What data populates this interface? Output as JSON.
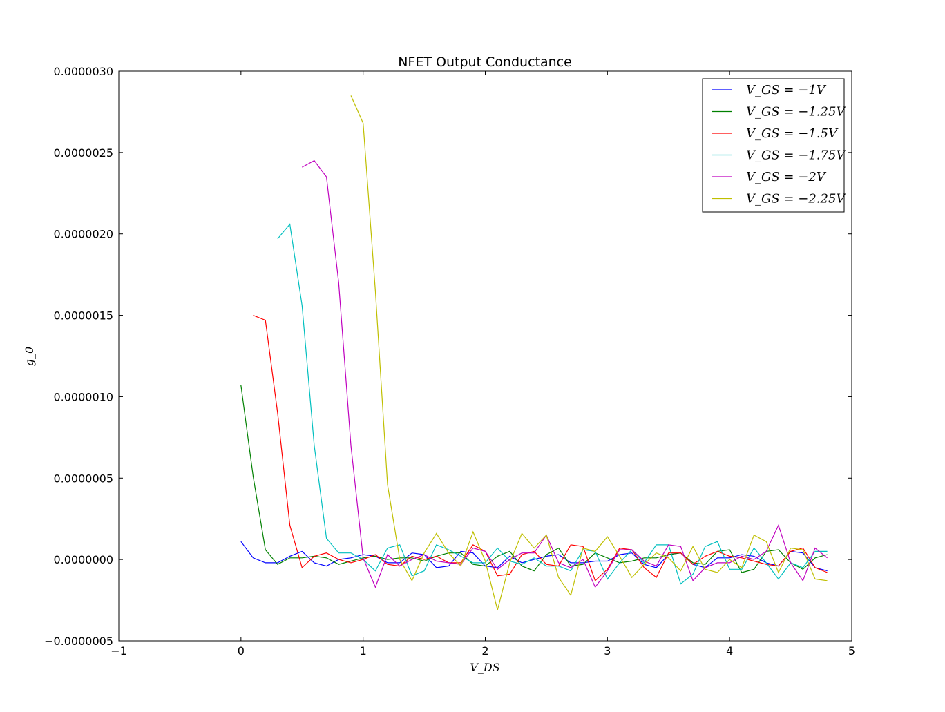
{
  "chart_data": {
    "type": "line",
    "title": "NFET Output Conductance",
    "xlabel": "V_DS",
    "ylabel": "g_0",
    "xlim": [
      -1,
      5
    ],
    "ylim": [
      -5e-07,
      3e-06
    ],
    "xticks": [
      -1,
      0,
      1,
      2,
      3,
      4,
      5
    ],
    "xtick_labels": [
      "−1",
      "0",
      "1",
      "2",
      "3",
      "4",
      "5"
    ],
    "yticks": [
      -5e-07,
      0,
      5e-07,
      1e-06,
      1.5e-06,
      2e-06,
      2.5e-06,
      3e-06
    ],
    "ytick_labels": [
      "−0.0000005",
      "0.0000000",
      "0.0000005",
      "0.0000010",
      "0.0000015",
      "0.0000020",
      "0.0000025",
      "0.0000030"
    ],
    "grid": false,
    "legend_position": "top-right",
    "series": [
      {
        "name": "V_GS = −1V",
        "color": "#0000ff",
        "x": [
          0,
          0.1,
          0.2,
          0.3,
          0.4,
          0.5,
          0.6,
          0.7,
          0.8,
          0.9,
          1.0,
          1.1,
          1.2,
          1.3,
          1.4,
          1.5,
          1.6,
          1.7,
          1.8,
          1.9,
          2.0,
          2.1,
          2.2,
          2.3,
          2.4,
          2.5,
          2.6,
          2.7,
          2.8,
          2.9,
          3.0,
          3.1,
          3.2,
          3.3,
          3.4,
          3.5,
          3.6,
          3.7,
          3.8,
          3.9,
          4.0,
          4.1,
          4.2,
          4.3,
          4.4,
          4.5,
          4.6,
          4.7,
          4.8
        ],
        "y": [
          1.1e-07,
          1e-08,
          -2e-08,
          -2e-08,
          2e-08,
          5e-08,
          -2e-08,
          -4e-08,
          0,
          1e-08,
          3e-08,
          2e-08,
          -2e-08,
          -2e-08,
          4e-08,
          3e-08,
          -5e-08,
          -4e-08,
          5e-08,
          4e-08,
          -4e-08,
          -5e-08,
          2e-08,
          -2e-08,
          0,
          2e-08,
          3e-08,
          -2e-08,
          -2e-08,
          -1e-08,
          -1e-08,
          3e-08,
          4e-08,
          -3e-08,
          -5e-08,
          3e-08,
          4e-08,
          -3e-08,
          -5e-08,
          1e-08,
          1e-08,
          3e-08,
          2e-08,
          -2e-08,
          -4e-08,
          5e-08,
          4e-08,
          -5e-08,
          -7e-08
        ]
      },
      {
        "name": "V_GS = −1.25V",
        "color": "#008000",
        "x": [
          0,
          0.1,
          0.2,
          0.3,
          0.4,
          0.5,
          0.6,
          0.7,
          0.8,
          0.9,
          1.0,
          1.1,
          1.2,
          1.3,
          1.4,
          1.5,
          1.6,
          1.7,
          1.8,
          1.9,
          2.0,
          2.1,
          2.2,
          2.3,
          2.4,
          2.5,
          2.6,
          2.7,
          2.8,
          2.9,
          3.0,
          3.1,
          3.2,
          3.3,
          3.4,
          3.5,
          3.6,
          3.7,
          3.8,
          3.9,
          4.0,
          4.1,
          4.2,
          4.3,
          4.4,
          4.5,
          4.6,
          4.7,
          4.8
        ],
        "y": [
          1.07e-06,
          5.1e-07,
          6e-08,
          -3e-08,
          1e-08,
          1e-08,
          2e-08,
          1e-08,
          -3e-08,
          -1e-08,
          1e-08,
          2e-08,
          0,
          1e-08,
          1e-08,
          -1e-08,
          2e-08,
          4e-08,
          4e-08,
          -3e-08,
          -4e-08,
          2e-08,
          5e-08,
          -4e-08,
          -7e-08,
          3e-08,
          7e-08,
          -4e-08,
          -3e-08,
          4e-08,
          1e-08,
          -2e-08,
          -1e-08,
          1e-08,
          1e-08,
          3e-08,
          4e-08,
          -2e-08,
          -3e-08,
          5e-08,
          6e-08,
          -8e-08,
          -6e-08,
          5e-08,
          6e-08,
          -2e-08,
          -6e-08,
          1e-08,
          3e-08
        ]
      },
      {
        "name": "V_GS = −1.5V",
        "color": "#ff0000",
        "x": [
          0.1,
          0.2,
          0.3,
          0.4,
          0.5,
          0.6,
          0.7,
          0.8,
          0.9,
          1.0,
          1.1,
          1.2,
          1.3,
          1.4,
          1.5,
          1.6,
          1.7,
          1.8,
          1.9,
          2.0,
          2.1,
          2.2,
          2.3,
          2.4,
          2.5,
          2.6,
          2.7,
          2.8,
          2.9,
          3.0,
          3.1,
          3.2,
          3.3,
          3.4,
          3.5,
          3.6,
          3.7,
          3.8,
          3.9,
          4.0,
          4.1,
          4.2,
          4.3,
          4.4,
          4.5,
          4.6,
          4.7,
          4.8
        ],
        "y": [
          1.5e-06,
          1.47e-06,
          9e-07,
          2.1e-07,
          -5e-08,
          2e-08,
          4e-08,
          0,
          -2e-08,
          0,
          3e-08,
          -3e-08,
          -4e-08,
          2e-08,
          0,
          2e-08,
          -2e-08,
          -2e-08,
          9e-08,
          5e-08,
          -1e-07,
          -9e-08,
          3e-08,
          5e-08,
          -3e-08,
          -4e-08,
          9e-08,
          8e-08,
          -1.3e-07,
          -6e-08,
          7e-08,
          6e-08,
          -5e-08,
          -1.1e-07,
          4e-08,
          4e-08,
          -3e-08,
          2e-08,
          5e-08,
          2e-08,
          1e-08,
          -1e-08,
          -3e-08,
          -4e-08,
          5e-08,
          7e-08,
          -5e-08,
          -8e-08
        ]
      },
      {
        "name": "V_GS = −1.75V",
        "color": "#00bfbf",
        "x": [
          0.3,
          0.4,
          0.5,
          0.6,
          0.7,
          0.8,
          0.9,
          1.0,
          1.1,
          1.2,
          1.3,
          1.4,
          1.5,
          1.6,
          1.7,
          1.8,
          1.9,
          2.0,
          2.1,
          2.2,
          2.3,
          2.4,
          2.5,
          2.6,
          2.7,
          2.8,
          2.9,
          3.0,
          3.1,
          3.2,
          3.3,
          3.4,
          3.5,
          3.6,
          3.7,
          3.8,
          3.9,
          4.0,
          4.1,
          4.2,
          4.3,
          4.4,
          4.5,
          4.6,
          4.7,
          4.8
        ],
        "y": [
          1.97e-06,
          2.06e-06,
          1.56e-06,
          7e-07,
          1.3e-07,
          4e-08,
          4e-08,
          0,
          -7e-08,
          7e-08,
          9e-08,
          -1e-07,
          -7e-08,
          9e-08,
          6e-08,
          2e-08,
          -2e-08,
          -2e-08,
          7e-08,
          -1e-08,
          -3e-08,
          1e-08,
          -4e-08,
          -4e-08,
          -7e-08,
          6e-08,
          5e-08,
          -1.2e-07,
          -2e-08,
          6e-08,
          -2e-08,
          9e-08,
          9e-08,
          -1.5e-07,
          -9e-08,
          8e-08,
          1.1e-07,
          -6e-08,
          -6e-08,
          7e-08,
          -2e-08,
          -1.2e-07,
          -2e-08,
          -5e-08,
          5e-08,
          5e-08
        ]
      },
      {
        "name": "V_GS = −2V",
        "color": "#bf00bf",
        "x": [
          0.5,
          0.6,
          0.7,
          0.8,
          0.9,
          1.0,
          1.1,
          1.2,
          1.3,
          1.4,
          1.5,
          1.6,
          1.7,
          1.8,
          1.9,
          2.0,
          2.1,
          2.2,
          2.3,
          2.4,
          2.5,
          2.6,
          2.7,
          2.8,
          2.9,
          3.0,
          3.1,
          3.2,
          3.3,
          3.4,
          3.5,
          3.6,
          3.7,
          3.8,
          3.9,
          4.0,
          4.1,
          4.2,
          4.3,
          4.4,
          4.5,
          4.6,
          4.7,
          4.8
        ],
        "y": [
          2.41e-06,
          2.45e-06,
          2.35e-06,
          1.7e-06,
          7e-07,
          1e-08,
          -1.7e-07,
          3e-08,
          -4e-08,
          0,
          3e-08,
          -1e-08,
          -2e-08,
          -3e-08,
          7e-08,
          5e-08,
          -6e-08,
          0,
          4e-08,
          4e-08,
          1.5e-07,
          -2e-08,
          -5e-08,
          0,
          -1.7e-07,
          -7e-08,
          6e-08,
          6e-08,
          -1e-08,
          -4e-08,
          9e-08,
          8e-08,
          -1.3e-07,
          -5e-08,
          -2e-08,
          -2e-08,
          2e-08,
          0,
          5e-08,
          2.1e-07,
          -2e-08,
          -1.3e-07,
          7e-08,
          1e-08
        ]
      },
      {
        "name": "V_GS = −2.25V",
        "color": "#bfbf00",
        "x": [
          0.9,
          1.0,
          1.1,
          1.2,
          1.3,
          1.4,
          1.5,
          1.6,
          1.7,
          1.8,
          1.9,
          2.0,
          2.1,
          2.2,
          2.3,
          2.4,
          2.5,
          2.6,
          2.7,
          2.8,
          2.9,
          3.0,
          3.1,
          3.2,
          3.3,
          3.4,
          3.5,
          3.6,
          3.7,
          3.8,
          3.9,
          4.0,
          4.1,
          4.2,
          4.3,
          4.4,
          4.5,
          4.6,
          4.7,
          4.8
        ],
        "y": [
          2.85e-06,
          2.68e-06,
          1.65e-06,
          4.6e-07,
          0,
          -1.3e-07,
          4e-08,
          1.6e-07,
          4e-08,
          -4e-08,
          1.7e-07,
          -1e-08,
          -3.1e-07,
          -2e-08,
          1.6e-07,
          7e-08,
          1.5e-07,
          -1.1e-07,
          -2.2e-07,
          7e-08,
          5e-08,
          1.4e-07,
          2e-08,
          -1.1e-07,
          -3e-08,
          4e-08,
          1e-08,
          -7e-08,
          8e-08,
          -6e-08,
          -8e-08,
          0,
          -5e-08,
          1.5e-07,
          1.1e-07,
          -8e-08,
          7e-08,
          6e-08,
          -1.2e-07,
          -1.3e-07
        ]
      }
    ]
  }
}
